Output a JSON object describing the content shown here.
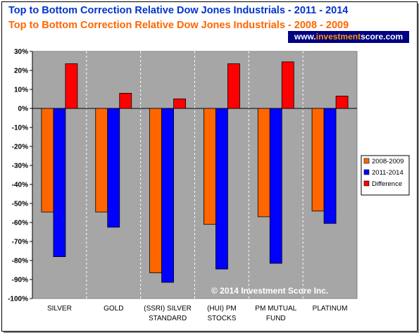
{
  "titles": {
    "line1": "Top to Bottom Correction Relative Dow Jones Industrials  - 2011 - 2014",
    "line2": "Top to Bottom Correction Relative Dow Jones Industrials  - 2008 - 2009"
  },
  "website": {
    "prefix": "www.",
    "accent": "investment",
    "suffix": "score.com"
  },
  "copyright": "© 2014 Investment Score Inc.",
  "colors": {
    "title1": "#0033cc",
    "title2": "#ff6600",
    "plot_bg": "#a6a6a6",
    "series_2008": "#ff6600",
    "series_2011": "#0000ff",
    "series_diff": "#ff0000"
  },
  "chart_data": {
    "type": "bar",
    "categories": [
      [
        "SILVER"
      ],
      [
        "GOLD"
      ],
      [
        "(SSRI) SILVER",
        "STANDARD"
      ],
      [
        "(HUI) PM",
        "STOCKS"
      ],
      [
        "PM MUTUAL",
        "FUND"
      ],
      [
        "PLATINUM"
      ]
    ],
    "series": [
      {
        "name": "2008-2009",
        "color": "#ff6600",
        "values": [
          -54.5,
          -54.5,
          -86.5,
          -61,
          -57,
          -54
        ]
      },
      {
        "name": "2011-2014",
        "color": "#0000ff",
        "values": [
          -78,
          -62.5,
          -91.5,
          -84.5,
          -81.5,
          -60.5
        ]
      },
      {
        "name": "Difference",
        "color": "#ff0000",
        "values": [
          23.5,
          8,
          5,
          23.5,
          24.5,
          6.5
        ]
      }
    ],
    "ylim": [
      -100,
      30
    ],
    "yticks": [
      "30%",
      "20%",
      "10%",
      "0%",
      "-10%",
      "-20%",
      "-30%",
      "-40%",
      "-50%",
      "-60%",
      "-70%",
      "-80%",
      "-90%",
      "-100%"
    ],
    "ytick_values": [
      30,
      20,
      10,
      0,
      -10,
      -20,
      -30,
      -40,
      -50,
      -60,
      -70,
      -80,
      -90,
      -100
    ],
    "grid": "vertical-dashed",
    "legend_position": "right"
  }
}
